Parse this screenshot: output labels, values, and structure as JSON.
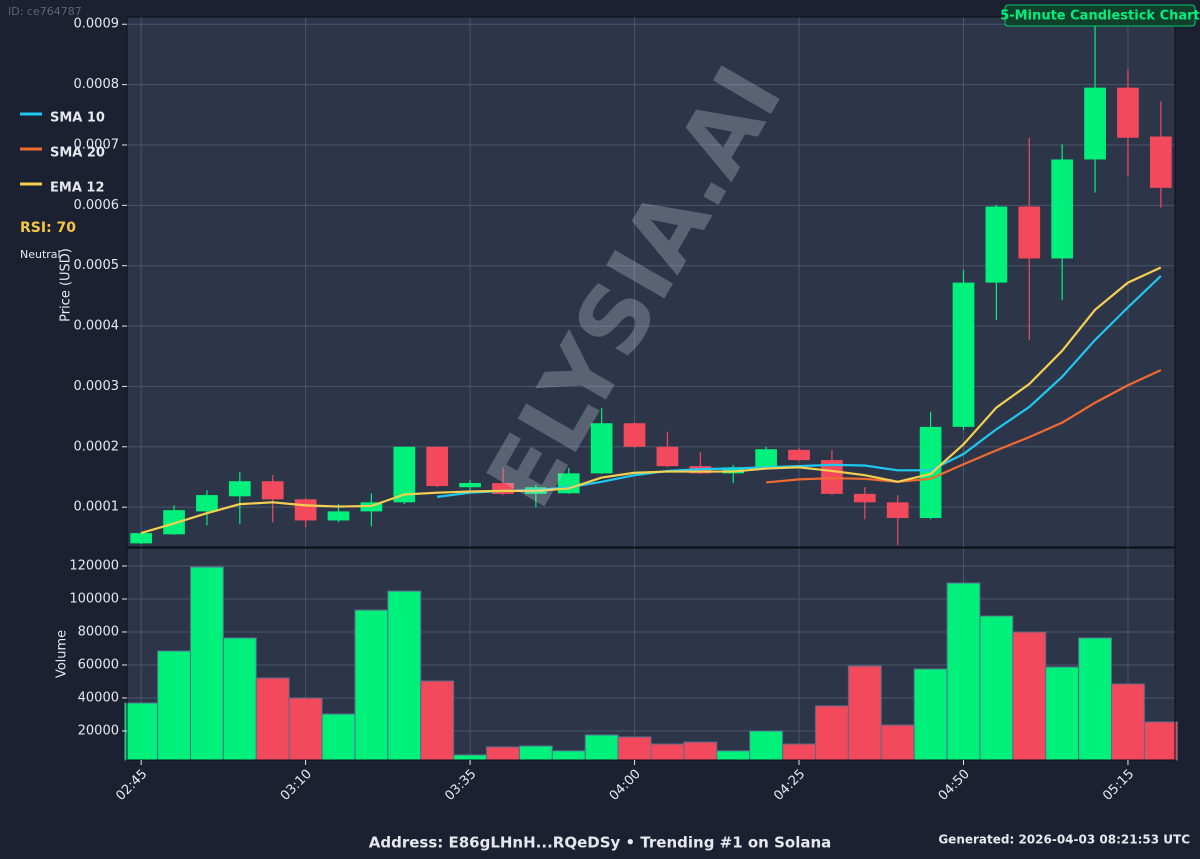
{
  "page_id": "ID: ce764787",
  "chart_data": [
    {
      "type": "candlestick",
      "title": "5-Minute Candlestick Chart",
      "watermark": "ELYSIA.AI",
      "ylabel": "Price (USD)",
      "ylim": [
        3.4e-05,
        0.000912
      ],
      "yticks": [
        0.0001,
        0.0002,
        0.0003,
        0.0004,
        0.0005,
        0.0006,
        0.0007,
        0.0008,
        0.0009
      ],
      "grid": true,
      "up_color": "#00f07c",
      "down_color": "#f2495c",
      "open": [
        4e-05,
        5.5e-05,
        9.3e-05,
        0.000118,
        0.000143,
        0.000113,
        7.8e-05,
        9.3e-05,
        0.000108,
        0.0002,
        0.000133,
        0.00014,
        0.000122,
        0.000123,
        0.000156,
        0.000239,
        0.0002,
        0.000168,
        0.000156,
        0.000166,
        0.000195,
        0.000178,
        0.000122,
        0.000108,
        8.2e-05,
        0.000233,
        0.000472,
        0.000598,
        0.000512,
        0.000676,
        0.000795,
        0.000714
      ],
      "high": [
        5.8e-05,
        0.000103,
        0.000128,
        0.000158,
        0.000153,
        0.000115,
        0.000105,
        0.000123,
        0.0002,
        0.0002,
        0.000145,
        0.000166,
        0.000137,
        0.000165,
        0.000264,
        0.000241,
        0.000225,
        0.000191,
        0.00017,
        0.0002,
        0.000198,
        0.000195,
        0.000133,
        0.00012,
        0.000258,
        0.000493,
        0.000601,
        0.000712,
        0.000701,
        0.0009,
        0.000825,
        0.000772
      ],
      "low": [
        3.9e-05,
        5.4e-05,
        7e-05,
        7.2e-05,
        7.5e-05,
        6.7e-05,
        7.5e-05,
        6.8e-05,
        0.000105,
        0.000133,
        0.000128,
        0.00012,
        0.0001,
        0.000122,
        0.000155,
        0.000198,
        0.000166,
        0.000155,
        0.00014,
        0.000165,
        0.000176,
        0.00012,
        8e-05,
        3.7e-05,
        8e-05,
        0.000228,
        0.00041,
        0.000377,
        0.000443,
        0.000621,
        0.000648,
        0.000596
      ],
      "close": [
        5.7e-05,
        9.5e-05,
        0.00012,
        0.000143,
        0.000113,
        7.8e-05,
        9.3e-05,
        0.000108,
        0.0002,
        0.000135,
        0.00014,
        0.000122,
        0.000133,
        0.000156,
        0.000239,
        0.0002,
        0.000168,
        0.000156,
        0.000166,
        0.000196,
        0.000178,
        0.000122,
        0.000108,
        8.2e-05,
        0.000233,
        0.000472,
        0.000598,
        0.000512,
        0.000676,
        0.000795,
        0.000712,
        0.000629
      ],
      "series": [
        {
          "name": "SMA 10",
          "color": "#1ec8f0",
          "values": [
            null,
            null,
            null,
            null,
            null,
            null,
            null,
            null,
            null,
            0.000117,
            0.000124,
            0.000127,
            0.000128,
            0.000133,
            0.000142,
            0.000153,
            0.00016,
            0.000163,
            0.000164,
            0.000166,
            0.000168,
            0.00017,
            0.000169,
            0.000161,
            0.000161,
            0.000188,
            0.000229,
            0.000266,
            0.000316,
            0.000377,
            0.000431,
            0.000483
          ]
        },
        {
          "name": "SMA 20",
          "color": "#f06a32",
          "values": [
            null,
            null,
            null,
            null,
            null,
            null,
            null,
            null,
            null,
            null,
            null,
            null,
            null,
            null,
            null,
            null,
            null,
            null,
            null,
            0.000141,
            0.000146,
            0.000148,
            0.000147,
            0.000142,
            0.000147,
            0.000171,
            0.000194,
            0.000216,
            0.00024,
            0.000273,
            0.000302,
            0.000327
          ]
        },
        {
          "name": "EMA 12",
          "color": "#f5d050",
          "values": [
            5.7e-05,
            7.3e-05,
            9e-05,
            0.000105,
            0.000108,
            0.000103,
            0.000101,
            0.000102,
            0.000121,
            0.000124,
            0.000126,
            0.000127,
            0.000127,
            0.000131,
            0.000149,
            0.000157,
            0.000159,
            0.000159,
            0.000159,
            0.000164,
            0.000166,
            0.00016,
            0.000153,
            0.000142,
            0.000155,
            0.000204,
            0.000265,
            0.000304,
            0.000359,
            0.000427,
            0.000472,
            0.000497
          ]
        }
      ],
      "indicator": "RSI: 70",
      "indicator_note": "Neutral"
    },
    {
      "type": "bar",
      "ylabel": "Volume",
      "categories": [
        "02:45",
        null,
        null,
        null,
        null,
        "03:10",
        null,
        null,
        null,
        null,
        "03:35",
        null,
        null,
        null,
        null,
        "04:00",
        null,
        null,
        null,
        null,
        "04:25",
        null,
        null,
        null,
        null,
        "04:50",
        null,
        null,
        null,
        null,
        "05:15",
        null
      ],
      "values": [
        37000,
        68500,
        119400,
        76400,
        52100,
        40000,
        30300,
        93300,
        104800,
        50300,
        5500,
        10300,
        10900,
        8000,
        17600,
        16400,
        12100,
        13300,
        8000,
        20000,
        12100,
        35200,
        59400,
        23600,
        57600,
        109700,
        89700,
        80000,
        58800,
        76400,
        48500,
        25500
      ],
      "ylim": [
        2400,
        130900
      ],
      "yticks": [
        20000,
        40000,
        60000,
        80000,
        100000,
        120000
      ],
      "grid": true
    }
  ],
  "footer": "Address: E86gLHnH...RQeDSy • Trending #1 on Solana",
  "generated": "Generated: 2026-04-03 08:21:53 UTC"
}
